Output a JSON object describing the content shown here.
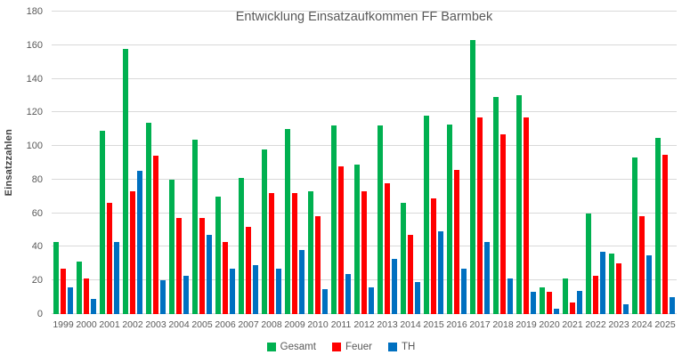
{
  "chart_data": {
    "type": "bar",
    "title": "Entwicklung Einsatzaufkommen FF Barmbek",
    "xlabel": "",
    "ylabel": "Einsatzzahlen",
    "ylim": [
      0,
      180
    ],
    "ytick_step": 20,
    "grid": true,
    "legend_position": "bottom",
    "categories": [
      "1999",
      "2000",
      "2001",
      "2002",
      "2003",
      "2004",
      "2005",
      "2006",
      "2007",
      "2008",
      "2009",
      "2010",
      "2011",
      "2012",
      "2013",
      "2014",
      "2015",
      "2016",
      "2017",
      "2018",
      "2019",
      "2020",
      "2021",
      "2022",
      "2023",
      "2024",
      "2025"
    ],
    "series": [
      {
        "name": "Gesamt",
        "color": "#00B050",
        "values": [
          43,
          31,
          109,
          158,
          114,
          80,
          104,
          70,
          81,
          98,
          110,
          73,
          112,
          89,
          112,
          66,
          118,
          113,
          163,
          129,
          130,
          16,
          21,
          60,
          36,
          93,
          105
        ]
      },
      {
        "name": "Feuer",
        "color": "#FF0000",
        "values": [
          27,
          21,
          66,
          73,
          94,
          57,
          57,
          43,
          52,
          72,
          72,
          58,
          88,
          73,
          78,
          47,
          69,
          86,
          117,
          107,
          117,
          13,
          7,
          23,
          30,
          58,
          95
        ]
      },
      {
        "name": "TH",
        "color": "#0070C0",
        "values": [
          16,
          9,
          43,
          85,
          20,
          23,
          47,
          27,
          29,
          27,
          38,
          15,
          24,
          16,
          33,
          19,
          49,
          27,
          43,
          21,
          13,
          3,
          14,
          37,
          6,
          35,
          10
        ]
      }
    ]
  }
}
